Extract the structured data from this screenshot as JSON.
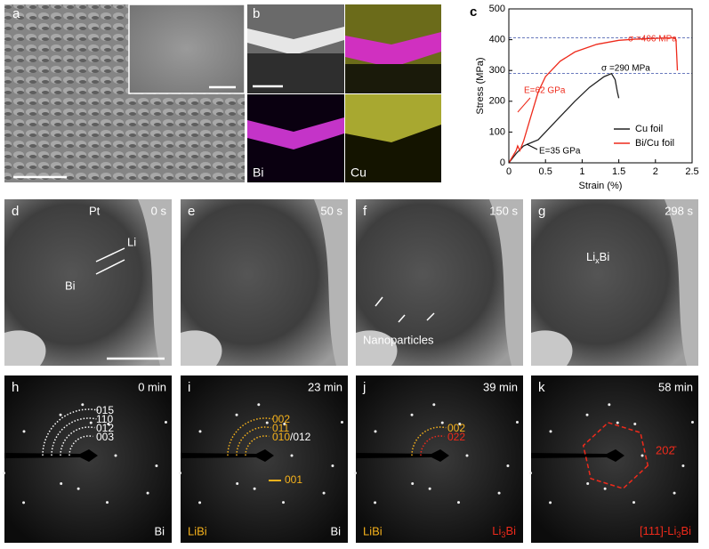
{
  "sem": {
    "label": "a"
  },
  "eds": {
    "label": "b",
    "maps": [
      "Bi",
      "Cu"
    ]
  },
  "chart_data": {
    "type": "line",
    "panel_label": "c",
    "xlabel": "Strain (%)",
    "ylabel": "Stress (MPa)",
    "xlim": [
      0,
      2.5
    ],
    "xticks": [
      0,
      0.5,
      1.0,
      1.5,
      2.0,
      2.5
    ],
    "ylim": [
      0,
      500
    ],
    "yticks": [
      0,
      100,
      200,
      300,
      400,
      500
    ],
    "legend": "lower right",
    "hlines": [
      406,
      290
    ],
    "hline_color": "#3a4fa8",
    "series": [
      {
        "name": "Cu foil",
        "color": "#222222",
        "x": [
          0,
          0.1,
          0.2,
          0.3,
          0.4,
          0.5,
          0.7,
          0.9,
          1.1,
          1.3,
          1.4,
          1.45,
          1.48,
          1.5
        ],
        "values": [
          0,
          30,
          55,
          65,
          75,
          100,
          150,
          200,
          245,
          280,
          290,
          270,
          230,
          210
        ]
      },
      {
        "name": "Bi/Cu foil",
        "color": "#ee2a1b",
        "x": [
          0,
          0.1,
          0.12,
          0.15,
          0.2,
          0.3,
          0.4,
          0.5,
          0.7,
          0.9,
          1.2,
          1.5,
          1.8,
          2.1,
          2.25,
          2.28,
          2.3
        ],
        "values": [
          0,
          40,
          55,
          40,
          70,
          150,
          230,
          280,
          330,
          360,
          385,
          398,
          403,
          405,
          406,
          400,
          300
        ]
      }
    ],
    "annotations": [
      "σ =406 MPa",
      "σ =290 MPa",
      "E=62 GPa",
      "E=35 GPa"
    ]
  },
  "tem": [
    {
      "label": "d",
      "time": "0 s",
      "notes": [
        "Pt",
        "Li",
        "Bi"
      ]
    },
    {
      "label": "e",
      "time": "50 s"
    },
    {
      "label": "f",
      "time": "150 s",
      "notes": [
        "Nanoparticles"
      ]
    },
    {
      "label": "g",
      "time": "298 s",
      "phase": [
        "Li",
        "x",
        "Bi"
      ]
    }
  ],
  "saed": [
    {
      "label": "h",
      "time": "0 min",
      "rings": [
        "015",
        "110",
        "012",
        "003"
      ],
      "right": [
        "Bi"
      ]
    },
    {
      "label": "i",
      "time": "23 min",
      "rings": [
        "002",
        "011",
        "010"
      ],
      "ring_extra": "/012",
      "spot": "001",
      "left": "LiBi",
      "right": [
        "Bi"
      ]
    },
    {
      "label": "j",
      "time": "39 min",
      "rings": [
        "002",
        "022"
      ],
      "left": "LiBi",
      "right": [
        "Li",
        "3",
        "Bi"
      ]
    },
    {
      "label": "k",
      "time": "58 min",
      "spot": "202̄",
      "right": [
        "[111]-Li",
        "3",
        "Bi"
      ]
    }
  ]
}
